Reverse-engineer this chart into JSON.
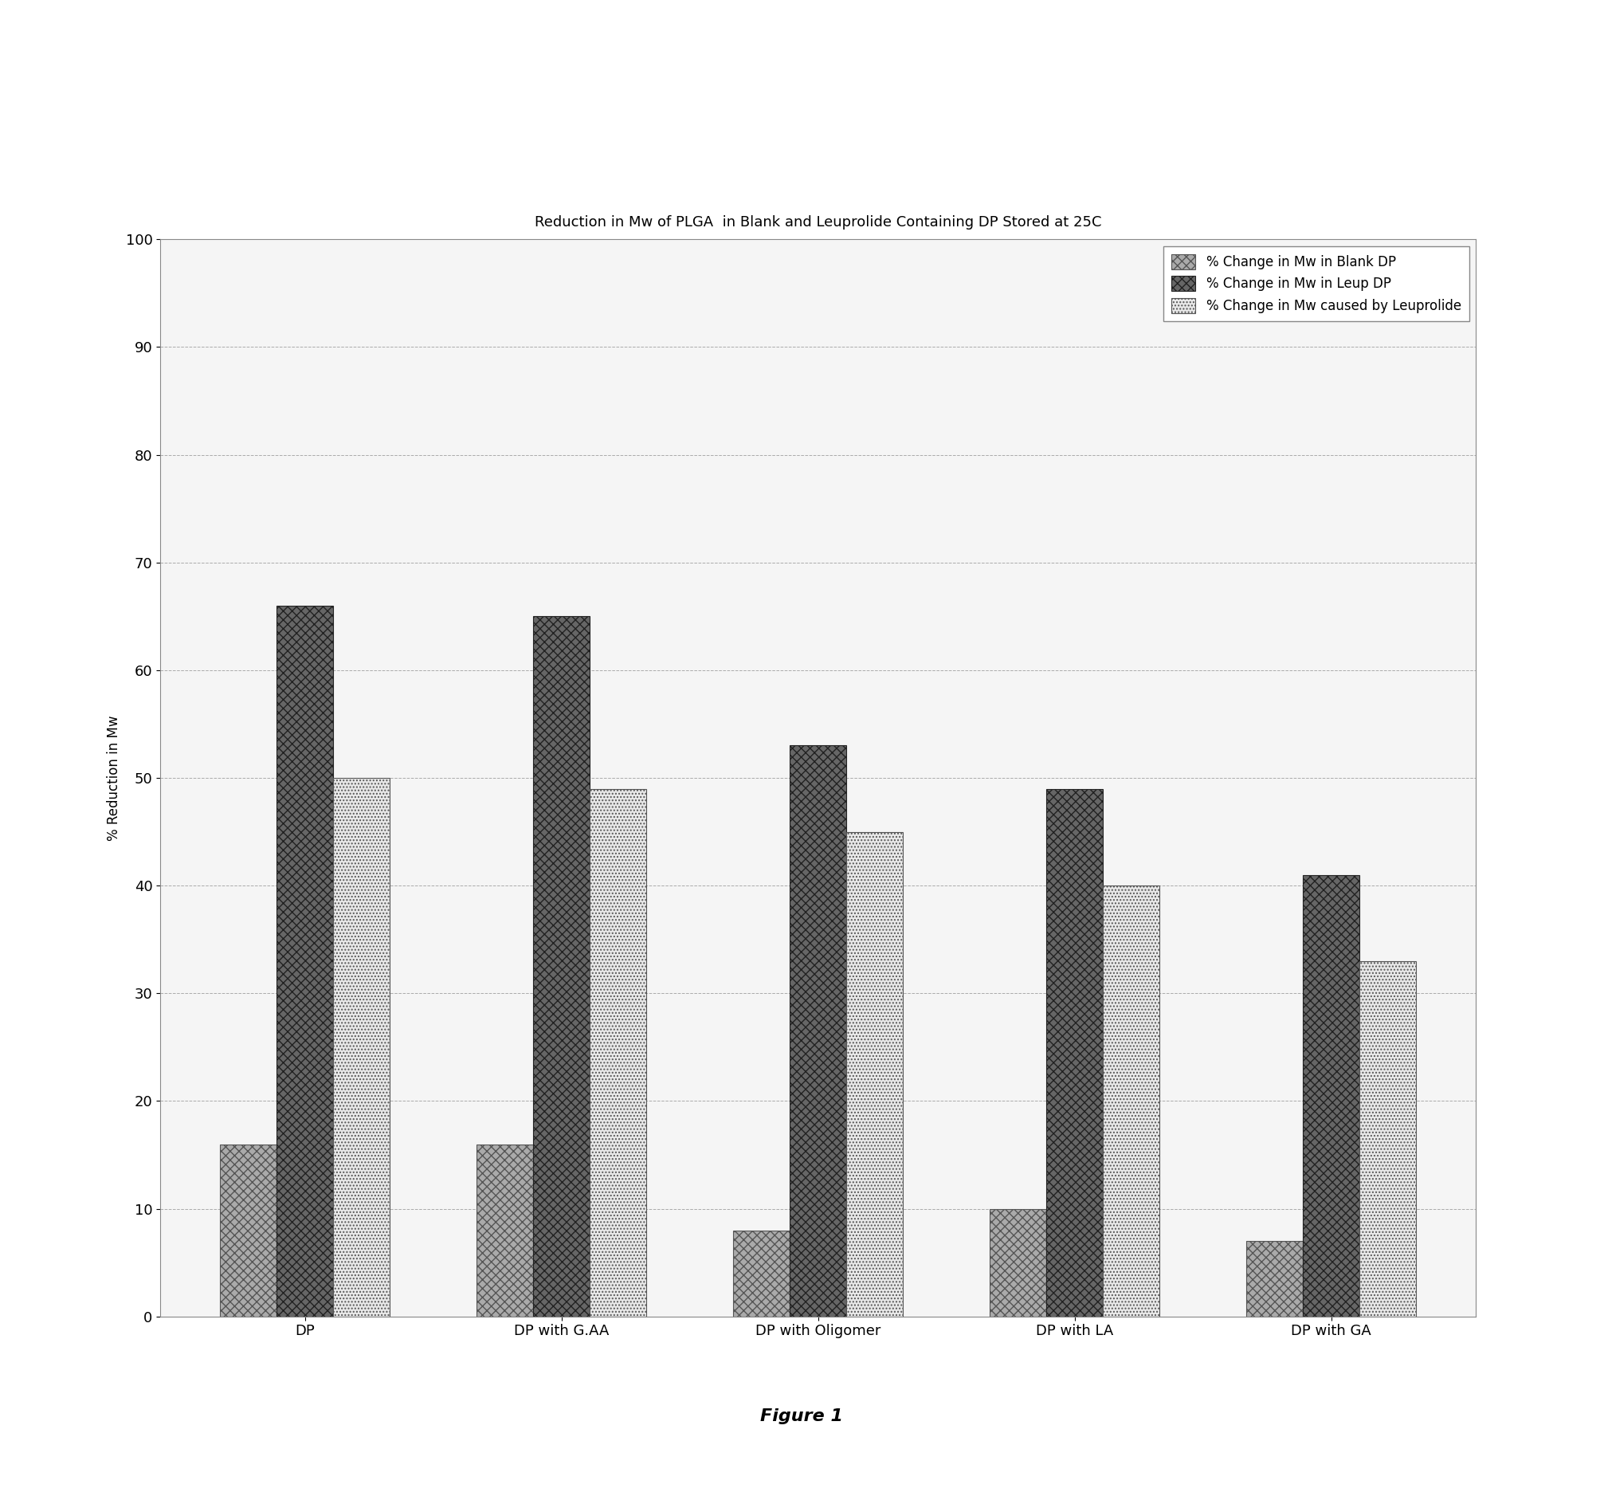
{
  "title": "Reduction in Mw of PLGA  in Blank and Leuprolide Containing DP Stored at 25C",
  "ylabel": "% Reduction in Mw",
  "xlabel": "",
  "categories": [
    "DP",
    "DP with G.AA",
    "DP with Oligomer",
    "DP with LA",
    "DP with GA"
  ],
  "series": {
    "blank_dp": [
      16,
      16,
      8,
      10,
      7
    ],
    "leup_dp": [
      66,
      65,
      53,
      49,
      41
    ],
    "leuprolide": [
      50,
      49,
      45,
      40,
      33
    ]
  },
  "legend_labels": [
    "% Change in Mw in Blank DP",
    "% Change in Mw in Leup DP",
    "% Change in Mw caused by Leuprolide"
  ],
  "ylim": [
    0,
    100
  ],
  "yticks": [
    0,
    10,
    20,
    30,
    40,
    50,
    60,
    70,
    80,
    90,
    100
  ],
  "bar_width": 0.22,
  "figure_caption": "Figure 1",
  "page_bg": "#f0f0f0",
  "plot_bg": "#f5f5f5",
  "grid_color": "#999999",
  "title_fontsize": 13,
  "axis_label_fontsize": 12,
  "tick_fontsize": 13,
  "legend_fontsize": 12,
  "caption_fontsize": 16
}
